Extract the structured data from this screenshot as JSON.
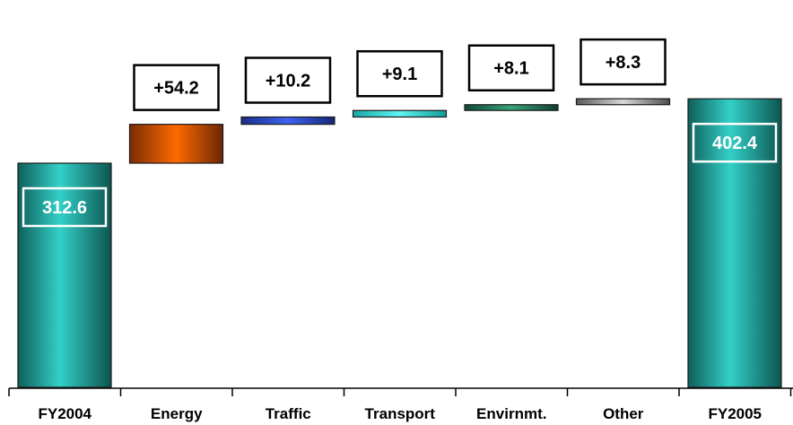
{
  "chart_data": {
    "type": "waterfall",
    "categories": [
      "FY2004",
      "Energy",
      "Traffic",
      "Transport",
      "Envirnmt.",
      "Other",
      "FY2005"
    ],
    "bars": [
      {
        "category": "FY2004",
        "kind": "total",
        "value": 312.6,
        "label": "312.6",
        "color": "#2aa9a3"
      },
      {
        "category": "Energy",
        "kind": "delta",
        "value": 54.2,
        "label": "+54.2",
        "color": "#e85a0c"
      },
      {
        "category": "Traffic",
        "kind": "delta",
        "value": 10.2,
        "label": "+10.2",
        "color": "#2e4fd0"
      },
      {
        "category": "Transport",
        "kind": "delta",
        "value": 9.1,
        "label": "+9.1",
        "color": "#2cd8d6"
      },
      {
        "category": "Envirnmt.",
        "kind": "delta",
        "value": 8.1,
        "label": "+8.1",
        "color": "#2f8f6a"
      },
      {
        "category": "Other",
        "kind": "delta",
        "value": 8.3,
        "label": "+8.3",
        "color": "#9a9a9a"
      },
      {
        "category": "FY2005",
        "kind": "total",
        "value": 402.4,
        "label": "402.4",
        "color": "#2aa9a3"
      }
    ],
    "title": "",
    "xlabel": "",
    "ylabel": "",
    "grid": false,
    "legend": "none"
  }
}
